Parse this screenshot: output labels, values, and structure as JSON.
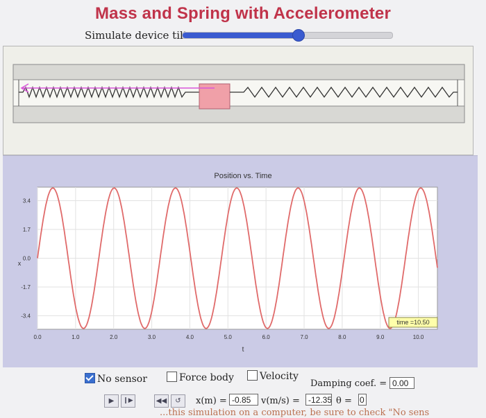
{
  "app": {
    "title": "Mass and Spring with Accelerometer",
    "tilt_label": "Simulate device tilt:",
    "tilt_value": 0.55
  },
  "colors": {
    "title": "#c0334a",
    "curve": "#e06a6a",
    "mass": "#f0a0a8",
    "arrow": "#d957d9",
    "slider": "#3a5bd0",
    "panel": "#cbcbe6",
    "time_box": "#ffffaa"
  },
  "controls": {
    "no_sensor": "No sensor",
    "no_sensor_checked": true,
    "force_body": "Force body",
    "force_body_checked": false,
    "velocity": "Velocity",
    "velocity_checked": false,
    "damping_label": "Damping coef. =",
    "damping_value": "0.00",
    "x_label": "x(m) =",
    "x_value": "-0.85",
    "v_label": "v(m/s) =",
    "v_value": "-12.35",
    "theta_label": "θ =",
    "theta_value": "0",
    "icons": [
      "play-icon",
      "step-forward-icon",
      "rewind-icon",
      "reset-icon"
    ]
  },
  "footer": {
    "text": "...this simulation on a computer, be sure to check \"No sens"
  },
  "chart_data": {
    "type": "line",
    "title": "Position vs. Time",
    "xlabel": "t",
    "ylabel": "x",
    "xlim": [
      0,
      10.5
    ],
    "ylim": [
      -4.2,
      4.2
    ],
    "x_ticks": [
      "0.0",
      "1.0",
      "2.0",
      "3.0",
      "4.0",
      "5.0",
      "6.0",
      "7.0",
      "8.0",
      "9.0",
      "10.0"
    ],
    "y_ticks": [
      "3.4",
      "1.7",
      "0.0",
      "-1.7",
      "-3.4"
    ],
    "y_tick_values": [
      3.4,
      1.7,
      0.0,
      -1.7,
      -3.4
    ],
    "grid": true,
    "time_label": "time =10.50",
    "series": [
      {
        "amplitude": 4.15,
        "period": 1.61,
        "x": [
          0,
          0.5,
          1.0,
          1.5,
          2.0,
          2.5,
          3.0,
          3.5,
          4.0,
          4.5,
          5.0,
          5.5,
          6.0,
          6.5,
          7.0,
          7.5,
          8.0,
          8.5,
          9.0,
          9.5,
          10.0,
          10.5
        ],
        "values": [
          0.0,
          3.8,
          -2.6,
          -1.9,
          4.1,
          -1.3,
          -3.2,
          3.3,
          0.8,
          -4.0,
          2.3,
          2.1,
          -4.1,
          1.0,
          3.5,
          -3.0,
          -1.5,
          4.1,
          -1.7,
          -2.9,
          3.7,
          0.3
        ]
      }
    ]
  }
}
